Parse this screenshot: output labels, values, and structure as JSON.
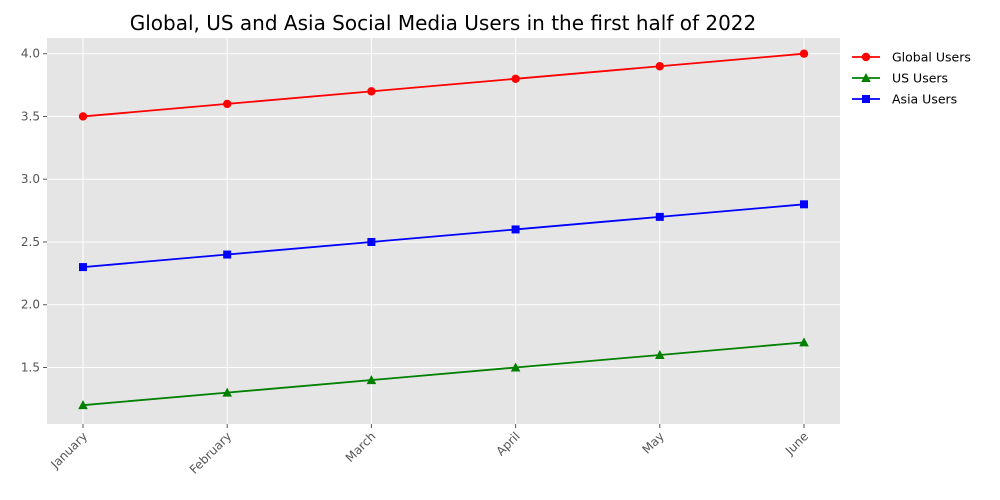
{
  "chart_data": {
    "type": "line",
    "title": "Global, US and Asia Social Media Users in the first half of 2022",
    "xlabel": "",
    "ylabel": "",
    "categories": [
      "January",
      "February",
      "March",
      "April",
      "May",
      "June"
    ],
    "ylim": [
      1.05,
      4.125
    ],
    "yticks": [
      "1.5",
      "2.0",
      "2.5",
      "3.0",
      "3.5",
      "4.0"
    ],
    "grid": true,
    "legend_position": "outside right, top",
    "series": [
      {
        "name": "Global Users",
        "values": [
          3.5,
          3.6,
          3.7,
          3.8,
          3.9,
          4.0
        ],
        "color": "#ff0000",
        "marker": "circle"
      },
      {
        "name": "US Users",
        "values": [
          1.2,
          1.3,
          1.4,
          1.5,
          1.6,
          1.7
        ],
        "color": "#008000",
        "marker": "triangle"
      },
      {
        "name": "Asia Users",
        "values": [
          2.3,
          2.4,
          2.5,
          2.6,
          2.7,
          2.8
        ],
        "color": "#0000ff",
        "marker": "square"
      }
    ]
  }
}
